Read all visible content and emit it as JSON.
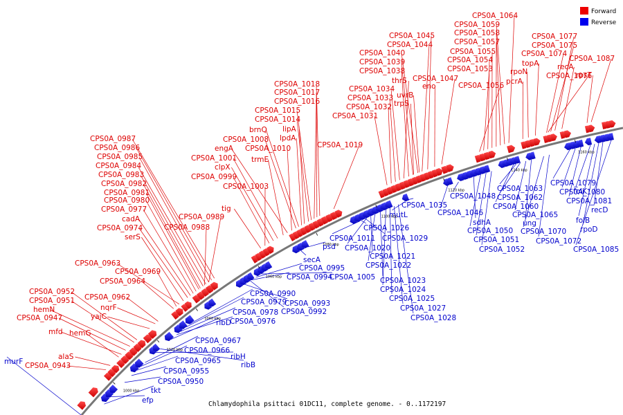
{
  "caption": "Chlamydophila psittaci 01DC11, complete genome. - 0..1172197",
  "legend": [
    {
      "label": "Forward",
      "color": "#ee0000"
    },
    {
      "label": "Reverse",
      "color": "#0000ee"
    }
  ],
  "ticks": [
    "1000 kbp",
    "1020 kbp",
    "1040 kbp",
    "1060 kbp",
    "1080 kbp",
    "1100 kbp",
    "1120 kbp",
    "1140 kbp",
    "1160 kbp"
  ],
  "forward_labels": [
    "CPS0A_1064",
    "CPS0A_1059",
    "CPS0A_1058",
    "CPS0A_1057",
    "CPS0A_1055",
    "CPS0A_1054",
    "CPS0A_1053",
    "CPS0A_1056",
    "CPS0A_1077",
    "CPS0A_1075",
    "CPS0A_1074",
    "topA",
    "rpoN",
    "pcrA",
    "recA",
    "CPS0A_1076",
    "CPS0A_1087",
    "rpsT",
    "CPS0A_1045",
    "CPS0A_1044",
    "CPS0A_1040",
    "CPS0A_1039",
    "CPS0A_1038",
    "thrS",
    "CPS0A_1034",
    "CPS0A_1033",
    "CPS0A_1032",
    "CPS0A_1031",
    "eno",
    "uvrB",
    "trpS",
    "CPS0A_1047",
    "CPS0A_1018",
    "CPS0A_1017",
    "CPS0A_1016",
    "CPS0A_1015",
    "CPS0A_1014",
    "lipA",
    "brnQ",
    "lpdA",
    "CPS0A_1008",
    "CPS0A_1010",
    "CPS0A_1019",
    "engA",
    "trmE",
    "CPS0A_1001",
    "clpX",
    "CPS0A_0999",
    "CPS0A_1003",
    "tig",
    "CPS0A_0987",
    "CPS0A_0986",
    "CPS0A_0985",
    "CPS0A_0984",
    "CPS0A_0983",
    "CPS0A_0982",
    "CPS0A_0981",
    "CPS0A_0980",
    "CPS0A_0977",
    "cadA",
    "CPS0A_0974",
    "serS",
    "CPS0A_0989",
    "CPS0A_0988",
    "CPS0A_0963",
    "CPS0A_0969",
    "CPS0A_0964",
    "CPS0A_0962",
    "nqrF",
    "yajC",
    "CPS0A_0952",
    "CPS0A_0951",
    "hemN",
    "CPS0A_0947",
    "mfd",
    "hemG",
    "alaS",
    "CPS0A_0943"
  ],
  "reverse_labels": [
    "murF",
    "tkt",
    "efp",
    "CPS0A_0950",
    "CPS0A_0955",
    "CPS0A_0965",
    "CPS0A_0966",
    "CPS0A_0967",
    "ribH",
    "ribB",
    "ribD",
    "CPS0A_0976",
    "CPS0A_0978",
    "CPS0A_0979",
    "CPS0A_0990",
    "CPS0A_0993",
    "CPS0A_0992",
    "CPS0A_0994",
    "CPS0A_0995",
    "CPS0A_1005",
    "secA",
    "psd",
    "CPS0A_1011",
    "CPS0A_1020",
    "CPS0A_1021",
    "CPS0A_1022",
    "CPS0A_1023",
    "CPS0A_1024",
    "CPS0A_1025",
    "CPS0A_1027",
    "CPS0A_1028",
    "CPS0A_1026",
    "CPS0A_1029",
    "mutL",
    "CPS0A_1035",
    "CPS0A_1046",
    "CPS0A_1048",
    "sdhA",
    "CPS0A_1050",
    "CPS0A_1051",
    "CPS0A_1052",
    "CPS0A_1063",
    "CPS0A_1062",
    "CPS0A_1060",
    "CPS0A_1065",
    "ung",
    "CPS0A_1070",
    "CPS0A_1072",
    "CPS0A_1079",
    "CPS0A_1080",
    "CPS0A_1081",
    "folK",
    "folB",
    "recD",
    "rpoD",
    "CPS0A_1085"
  ]
}
